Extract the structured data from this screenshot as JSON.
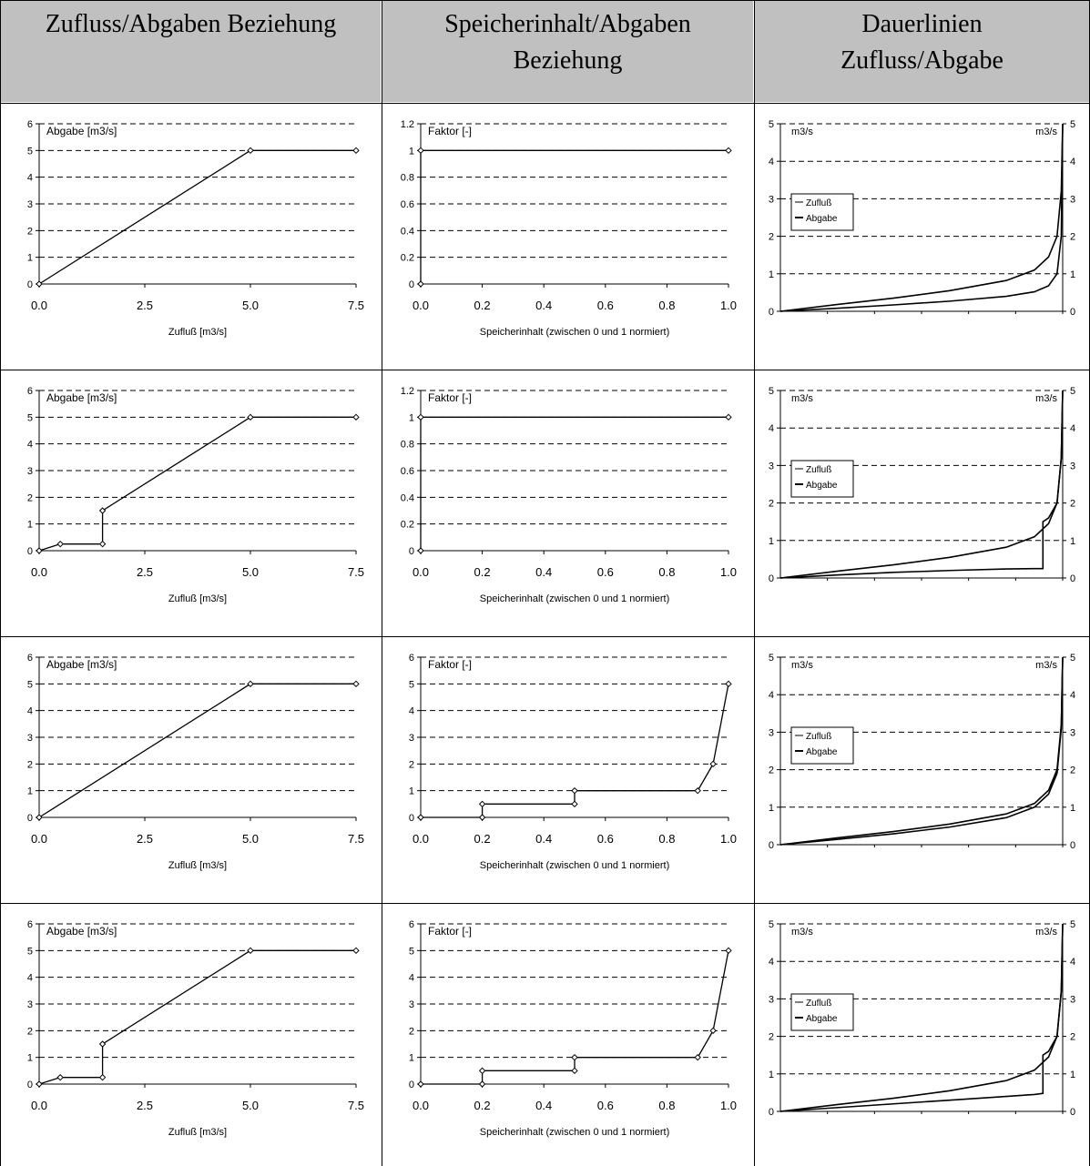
{
  "headers": [
    {
      "line1": "Zufluss/Abgaben Beziehung",
      "line2": ""
    },
    {
      "line1": "Speicherinhalt/Abgaben",
      "line2": "Beziehung"
    },
    {
      "line1": "Dauerlinien",
      "line2": "Zufluss/Abgabe"
    }
  ],
  "chart_data": [
    {
      "row": 1,
      "col": 1,
      "type": "line",
      "title": "",
      "ylabel": "Abgabe [m3/s]",
      "xlabel": "Zufluß [m3/s]",
      "xlim": [
        0,
        7.5
      ],
      "ylim": [
        0,
        6
      ],
      "xticks": [
        "0.0",
        "2.5",
        "5.0",
        "7.5"
      ],
      "yticks": [
        "0",
        "1",
        "2",
        "3",
        "4",
        "5",
        "6"
      ],
      "grid": "horizontal-dashed",
      "series": [
        {
          "x": [
            0,
            5,
            7.5
          ],
          "y": [
            0,
            5,
            5
          ]
        }
      ]
    },
    {
      "row": 1,
      "col": 2,
      "type": "line",
      "title": "",
      "ylabel": "Faktor [-]",
      "xlabel": "Speicherinhalt (zwischen 0 und 1 normiert)",
      "xlim": [
        0,
        1
      ],
      "ylim": [
        0,
        1.2
      ],
      "xticks": [
        "0.0",
        "0.2",
        "0.4",
        "0.6",
        "0.8",
        "1.0"
      ],
      "yticks": [
        "0",
        "0.2",
        "0.4",
        "0.6",
        "0.8",
        "1",
        "1.2"
      ],
      "grid": "horizontal-dashed",
      "series": [
        {
          "x": [
            0,
            0,
            1
          ],
          "y": [
            0,
            1,
            1
          ]
        }
      ]
    },
    {
      "row": 1,
      "col": 3,
      "type": "line",
      "title": "",
      "ylabel": "m3/s",
      "y2label": "m3/s",
      "xlim": [
        0,
        1
      ],
      "ylim": [
        0,
        5
      ],
      "yticks": [
        "0",
        "1",
        "2",
        "3",
        "4",
        "5"
      ],
      "grid": "horizontal-dashed",
      "legend": "left",
      "series": [
        {
          "name": "Zufluß",
          "x": [
            0,
            0.2,
            0.4,
            0.6,
            0.8,
            0.9,
            0.95,
            0.98,
            0.995,
            1
          ],
          "y": [
            0,
            0.18,
            0.35,
            0.55,
            0.82,
            1.1,
            1.45,
            2.0,
            3.2,
            5
          ]
        },
        {
          "name": "Abgabe",
          "x": [
            0,
            0.2,
            0.4,
            0.6,
            0.8,
            0.9,
            0.95,
            0.98,
            0.995,
            1
          ],
          "y": [
            0,
            0.08,
            0.17,
            0.27,
            0.4,
            0.52,
            0.68,
            1.0,
            2.0,
            5
          ]
        }
      ]
    },
    {
      "row": 2,
      "col": 1,
      "type": "line",
      "title": "",
      "ylabel": "Abgabe [m3/s]",
      "xlabel": "Zufluß [m3/s]",
      "xlim": [
        0,
        7.5
      ],
      "ylim": [
        0,
        6
      ],
      "xticks": [
        "0.0",
        "2.5",
        "5.0",
        "7.5"
      ],
      "yticks": [
        "0",
        "1",
        "2",
        "3",
        "4",
        "5",
        "6"
      ],
      "grid": "horizontal-dashed",
      "series": [
        {
          "x": [
            0,
            0.5,
            1.5,
            1.5,
            5,
            7.5
          ],
          "y": [
            0,
            0.25,
            0.25,
            1.5,
            5,
            5
          ]
        }
      ]
    },
    {
      "row": 2,
      "col": 2,
      "type": "line",
      "title": "",
      "ylabel": "Faktor [-]",
      "xlabel": "Speicherinhalt (zwischen 0 und 1 normiert)",
      "xlim": [
        0,
        1
      ],
      "ylim": [
        0,
        1.2
      ],
      "xticks": [
        "0.0",
        "0.2",
        "0.4",
        "0.6",
        "0.8",
        "1.0"
      ],
      "yticks": [
        "0",
        "0.2",
        "0.4",
        "0.6",
        "0.8",
        "1",
        "1.2"
      ],
      "grid": "horizontal-dashed",
      "series": [
        {
          "x": [
            0,
            0,
            1
          ],
          "y": [
            0,
            1,
            1
          ]
        }
      ]
    },
    {
      "row": 2,
      "col": 3,
      "type": "line",
      "title": "",
      "ylabel": "m3/s",
      "y2label": "m3/s",
      "xlim": [
        0,
        1
      ],
      "ylim": [
        0,
        5
      ],
      "yticks": [
        "0",
        "1",
        "2",
        "3",
        "4",
        "5"
      ],
      "grid": "horizontal-dashed",
      "legend": "left",
      "series": [
        {
          "name": "Zufluß",
          "x": [
            0,
            0.2,
            0.4,
            0.6,
            0.8,
            0.9,
            0.95,
            0.98,
            0.995,
            1
          ],
          "y": [
            0,
            0.18,
            0.35,
            0.55,
            0.82,
            1.1,
            1.45,
            2.0,
            3.2,
            5
          ]
        },
        {
          "name": "Abgabe",
          "x": [
            0,
            0.2,
            0.4,
            0.6,
            0.8,
            0.9,
            0.93,
            0.93,
            0.95,
            0.98,
            0.995,
            1
          ],
          "y": [
            0,
            0.08,
            0.15,
            0.2,
            0.24,
            0.25,
            0.25,
            1.5,
            1.6,
            2.0,
            3.2,
            5
          ]
        }
      ]
    },
    {
      "row": 3,
      "col": 1,
      "type": "line",
      "title": "",
      "ylabel": "Abgabe [m3/s]",
      "xlabel": "Zufluß [m3/s]",
      "xlim": [
        0,
        7.5
      ],
      "ylim": [
        0,
        6
      ],
      "xticks": [
        "0.0",
        "2.5",
        "5.0",
        "7.5"
      ],
      "yticks": [
        "0",
        "1",
        "2",
        "3",
        "4",
        "5",
        "6"
      ],
      "grid": "horizontal-dashed",
      "series": [
        {
          "x": [
            0,
            5,
            7.5
          ],
          "y": [
            0,
            5,
            5
          ]
        }
      ]
    },
    {
      "row": 3,
      "col": 2,
      "type": "line",
      "title": "",
      "ylabel": "Faktor [-]",
      "xlabel": "Speicherinhalt (zwischen 0 und 1 normiert)",
      "xlim": [
        0,
        1
      ],
      "ylim": [
        0,
        6
      ],
      "xticks": [
        "0.0",
        "0.2",
        "0.4",
        "0.6",
        "0.8",
        "1.0"
      ],
      "yticks": [
        "0",
        "1",
        "2",
        "3",
        "4",
        "5",
        "6"
      ],
      "grid": "horizontal-dashed",
      "series": [
        {
          "x": [
            0,
            0.2,
            0.2,
            0.5,
            0.5,
            0.9,
            0.95,
            1
          ],
          "y": [
            0,
            0,
            0.5,
            0.5,
            1,
            1,
            2,
            5
          ]
        }
      ]
    },
    {
      "row": 3,
      "col": 3,
      "type": "line",
      "title": "",
      "ylabel": "m3/s",
      "y2label": "m3/s",
      "xlim": [
        0,
        1
      ],
      "ylim": [
        0,
        5
      ],
      "yticks": [
        "0",
        "1",
        "2",
        "3",
        "4",
        "5"
      ],
      "grid": "horizontal-dashed",
      "legend": "left",
      "series": [
        {
          "name": "Zufluß",
          "x": [
            0,
            0.2,
            0.4,
            0.6,
            0.8,
            0.9,
            0.95,
            0.98,
            0.995,
            1
          ],
          "y": [
            0,
            0.18,
            0.35,
            0.55,
            0.82,
            1.1,
            1.45,
            2.0,
            3.2,
            5
          ]
        },
        {
          "name": "Abgabe",
          "x": [
            0,
            0.2,
            0.4,
            0.6,
            0.8,
            0.9,
            0.95,
            0.98,
            0.995,
            1
          ],
          "y": [
            0,
            0.14,
            0.29,
            0.47,
            0.72,
            1.0,
            1.35,
            1.9,
            3.1,
            5
          ]
        }
      ]
    },
    {
      "row": 4,
      "col": 1,
      "type": "line",
      "title": "",
      "ylabel": "Abgabe [m3/s]",
      "xlabel": "Zufluß [m3/s]",
      "xlim": [
        0,
        7.5
      ],
      "ylim": [
        0,
        6
      ],
      "xticks": [
        "0.0",
        "2.5",
        "5.0",
        "7.5"
      ],
      "yticks": [
        "0",
        "1",
        "2",
        "3",
        "4",
        "5",
        "6"
      ],
      "grid": "horizontal-dashed",
      "series": [
        {
          "x": [
            0,
            0.5,
            1.5,
            1.5,
            5,
            7.5
          ],
          "y": [
            0,
            0.25,
            0.25,
            1.5,
            5,
            5
          ]
        }
      ]
    },
    {
      "row": 4,
      "col": 2,
      "type": "line",
      "title": "",
      "ylabel": "Faktor [-]",
      "xlabel": "Speicherinhalt (zwischen 0 und 1 normiert)",
      "xlim": [
        0,
        1
      ],
      "ylim": [
        0,
        6
      ],
      "xticks": [
        "0.0",
        "0.2",
        "0.4",
        "0.6",
        "0.8",
        "1.0"
      ],
      "yticks": [
        "0",
        "1",
        "2",
        "3",
        "4",
        "5",
        "6"
      ],
      "grid": "horizontal-dashed",
      "series": [
        {
          "x": [
            0,
            0.2,
            0.2,
            0.5,
            0.5,
            0.9,
            0.95,
            1
          ],
          "y": [
            0,
            0,
            0.5,
            0.5,
            1,
            1,
            2,
            5
          ]
        }
      ]
    },
    {
      "row": 4,
      "col": 3,
      "type": "line",
      "title": "",
      "ylabel": "m3/s",
      "y2label": "m3/s",
      "xlim": [
        0,
        1
      ],
      "ylim": [
        0,
        5
      ],
      "yticks": [
        "0",
        "1",
        "2",
        "3",
        "4",
        "5"
      ],
      "grid": "horizontal-dashed",
      "legend": "left",
      "series": [
        {
          "name": "Zufluß",
          "x": [
            0,
            0.2,
            0.4,
            0.6,
            0.8,
            0.9,
            0.95,
            0.98,
            0.995,
            1
          ],
          "y": [
            0,
            0.18,
            0.35,
            0.55,
            0.82,
            1.1,
            1.45,
            2.0,
            3.2,
            5
          ]
        },
        {
          "name": "Abgabe",
          "x": [
            0,
            0.2,
            0.4,
            0.6,
            0.8,
            0.9,
            0.93,
            0.93,
            0.95,
            0.98,
            0.995,
            1
          ],
          "y": [
            0,
            0.1,
            0.2,
            0.3,
            0.4,
            0.45,
            0.48,
            1.5,
            1.6,
            2.0,
            3.2,
            5
          ]
        }
      ]
    }
  ]
}
